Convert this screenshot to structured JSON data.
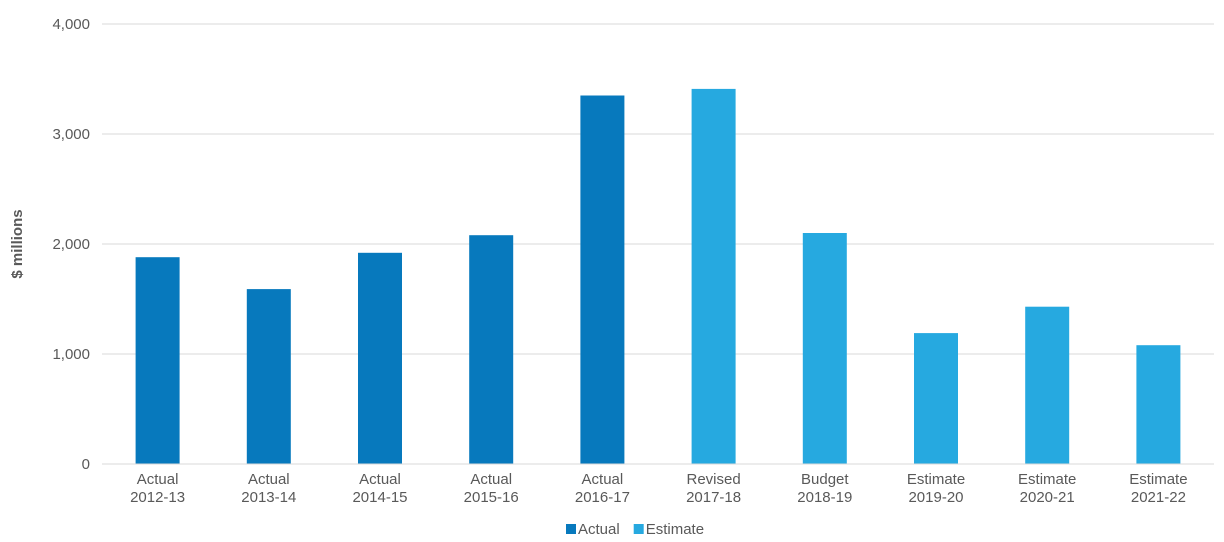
{
  "chart_data": {
    "type": "bar",
    "categories": [
      [
        "Actual",
        "2012-13"
      ],
      [
        "Actual",
        "2013-14"
      ],
      [
        "Actual",
        "2014-15"
      ],
      [
        "Actual",
        "2015-16"
      ],
      [
        "Actual",
        "2016-17"
      ],
      [
        "Revised",
        "2017-18"
      ],
      [
        "Budget",
        "2018-19"
      ],
      [
        "Estimate",
        "2019-20"
      ],
      [
        "Estimate",
        "2020-21"
      ],
      [
        "Estimate",
        "2021-22"
      ]
    ],
    "values": [
      1880,
      1590,
      1920,
      2080,
      3350,
      3410,
      2100,
      1190,
      1430,
      1080
    ],
    "bar_series": [
      "Actual",
      "Actual",
      "Actual",
      "Actual",
      "Actual",
      "Estimate",
      "Estimate",
      "Estimate",
      "Estimate",
      "Estimate"
    ],
    "series": [
      {
        "name": "Actual",
        "color": "#0779BD"
      },
      {
        "name": "Estimate",
        "color": "#26A9E0"
      }
    ],
    "title": "",
    "xlabel": "",
    "ylabel": "$ millions",
    "ylim": [
      0,
      4000
    ],
    "yticks": [
      0,
      1000,
      2000,
      3000,
      4000
    ],
    "ytick_labels": [
      "0",
      "1,000",
      "2,000",
      "3,000",
      "4,000"
    ],
    "grid": true,
    "legend": "bottom-center"
  }
}
